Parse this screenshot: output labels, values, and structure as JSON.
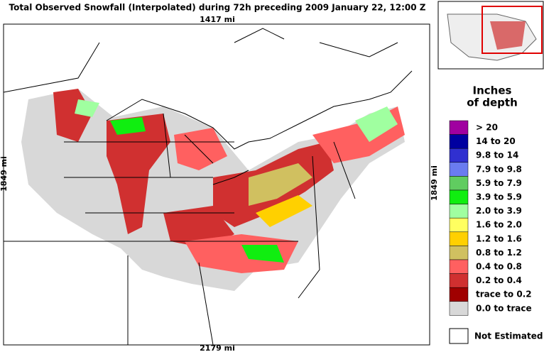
{
  "header": {
    "title": "Total Observed Snowfall (Interpolated) during 72h preceding 2009 January 22, 12:00 Z"
  },
  "map": {
    "top_scale": "1417 mi",
    "bottom_scale": "2179 mi",
    "left_scale": "1849 mi",
    "right_scale": "1849 mi"
  },
  "legend": {
    "title_line1": "Inches",
    "title_line2": "of depth",
    "items": [
      {
        "label": "> 20",
        "color": "#a000a0"
      },
      {
        "label": "14 to 20",
        "color": "#0000a0"
      },
      {
        "label": "9.8 to 14",
        "color": "#3030d0"
      },
      {
        "label": "7.9 to 9.8",
        "color": "#6a7cf0"
      },
      {
        "label": "5.9 to 7.9",
        "color": "#60cc60"
      },
      {
        "label": "3.9 to 5.9",
        "color": "#10ee10"
      },
      {
        "label": "2.0 to 3.9",
        "color": "#a0ffa0"
      },
      {
        "label": "1.6 to 2.0",
        "color": "#ffff60"
      },
      {
        "label": "1.2 to 1.6",
        "color": "#ffd000"
      },
      {
        "label": "0.8 to 1.2",
        "color": "#d0c060"
      },
      {
        "label": "0.4 to 0.8",
        "color": "#ff6060"
      },
      {
        "label": "0.2 to 0.4",
        "color": "#d03030"
      },
      {
        "label": "trace to 0.2",
        "color": "#a00000"
      },
      {
        "label": "0.0 to trace",
        "color": "#d8d8d8"
      }
    ],
    "not_estimated": "Not Estimated"
  }
}
